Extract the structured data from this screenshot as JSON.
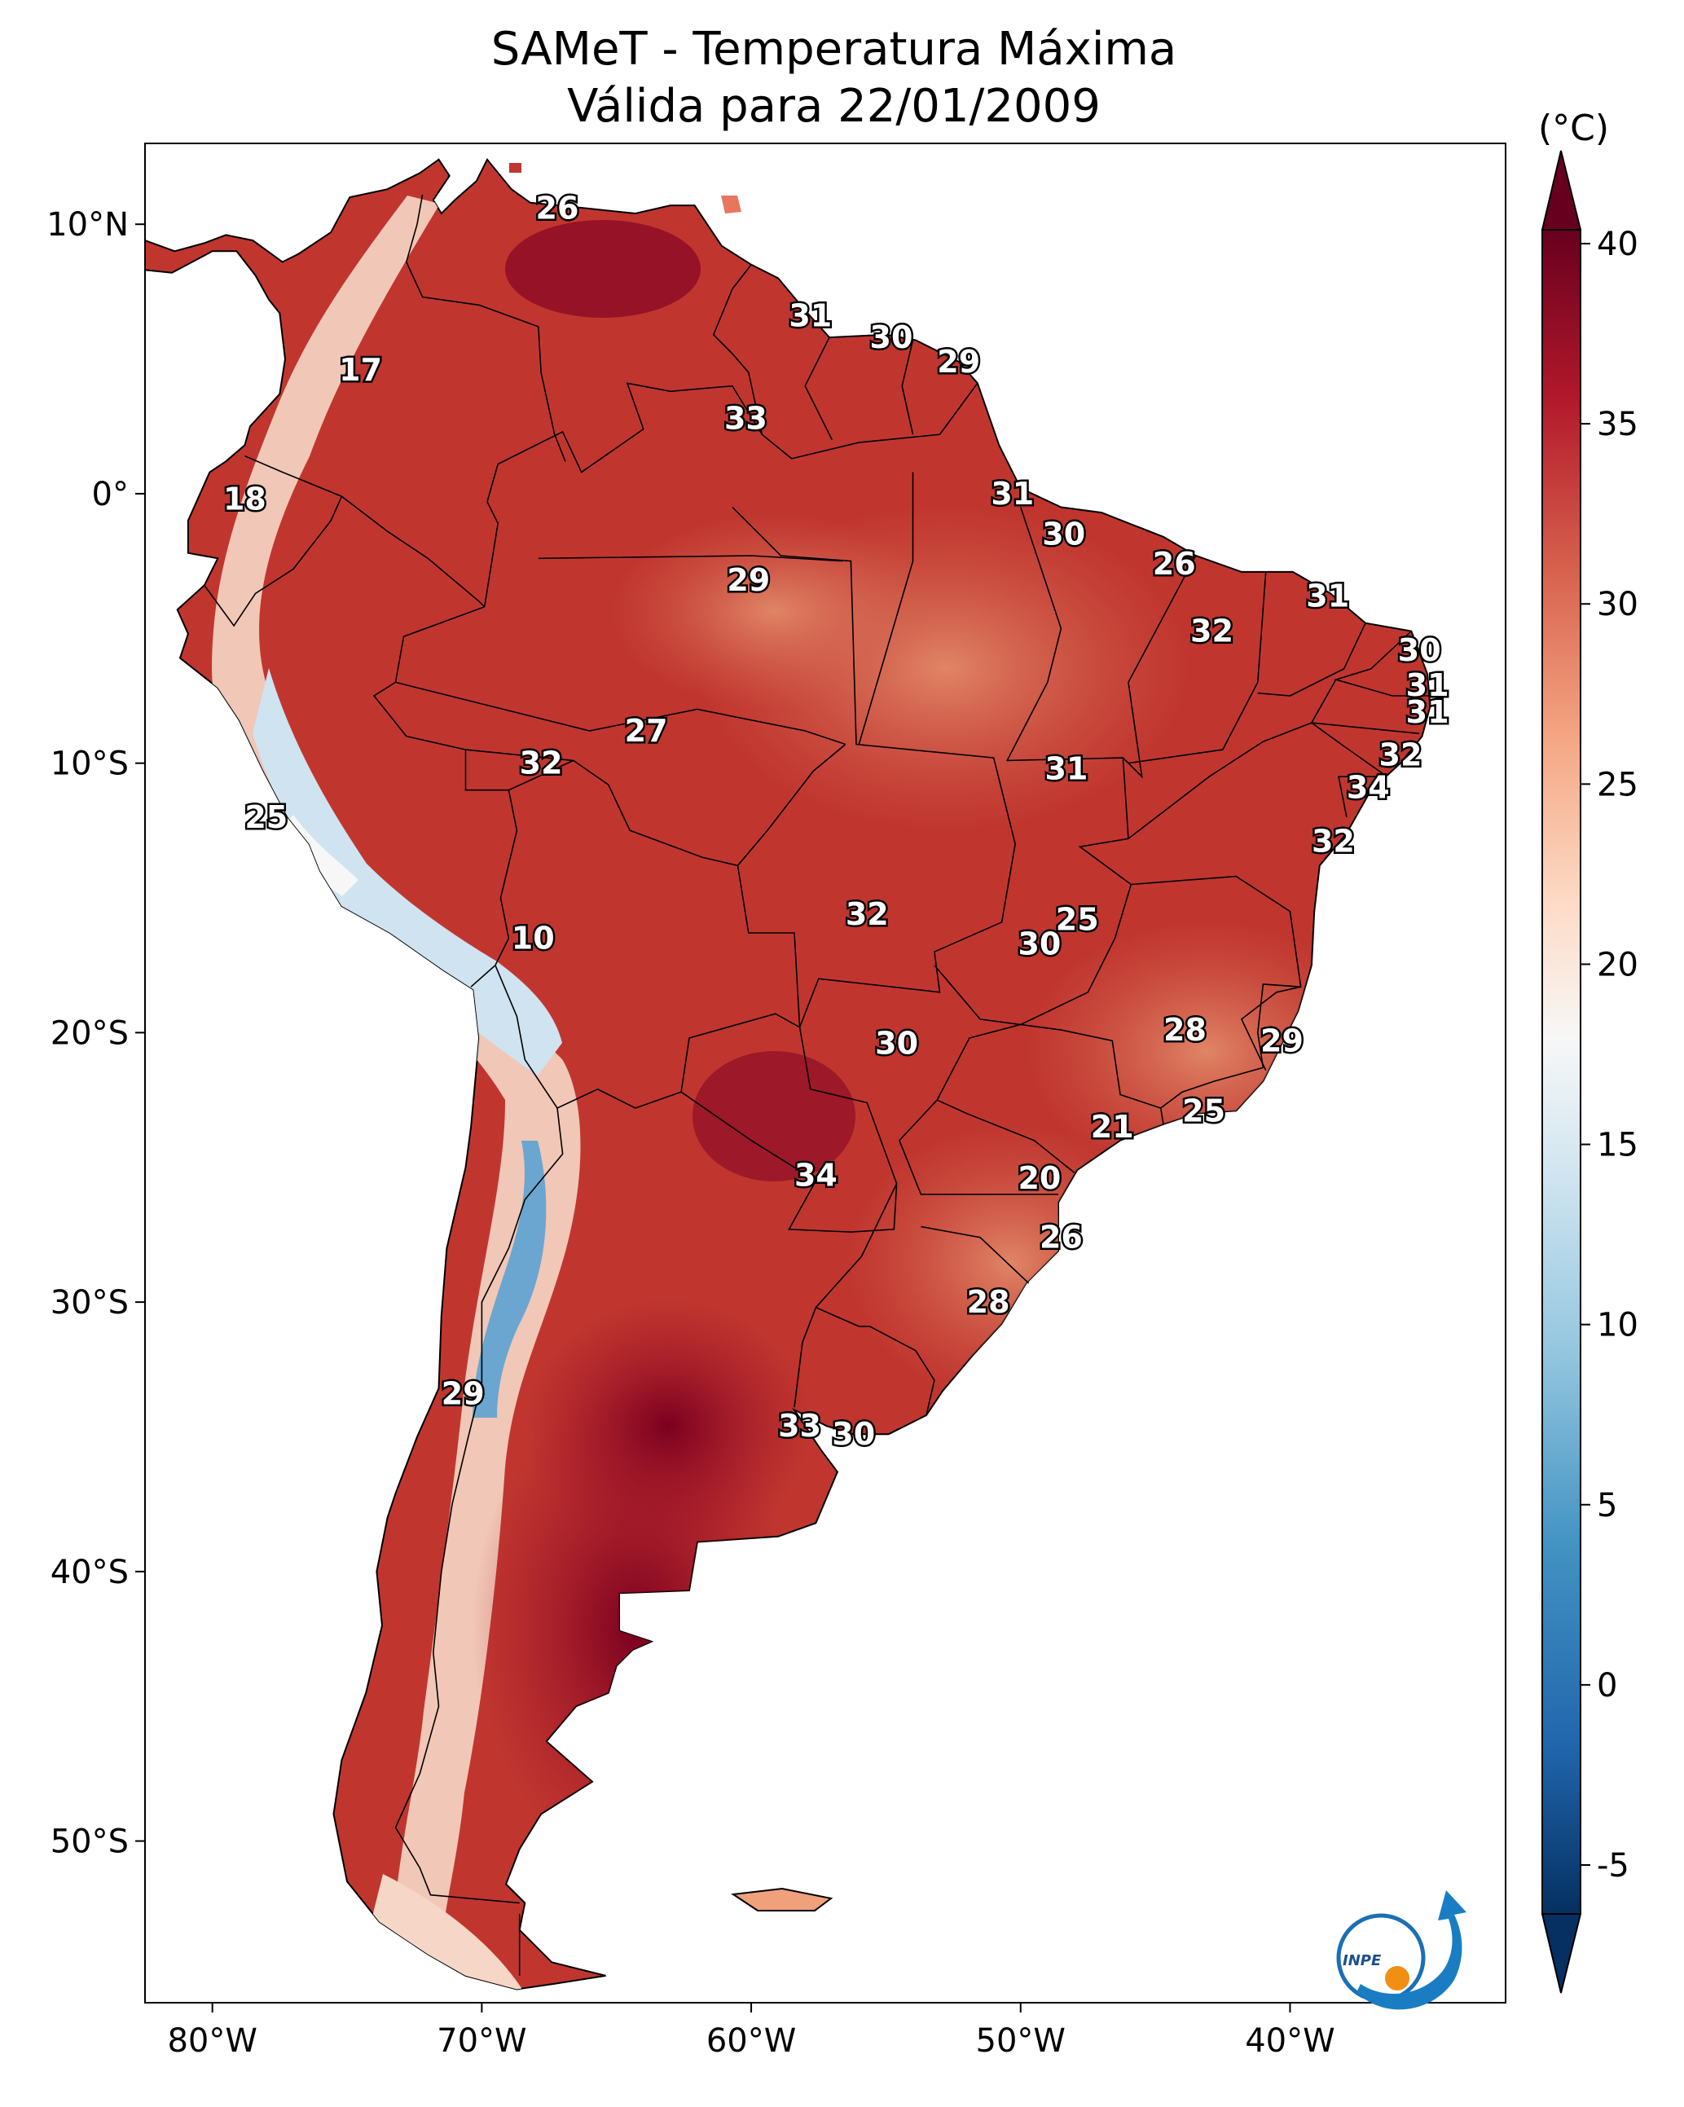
{
  "title_line1": "SAMeT - Temperatura Máxima",
  "title_line2": "Válida para 22/01/2009",
  "colorbar": {
    "unit": "(°C)",
    "min": -5,
    "max": 40,
    "ticks": [
      "40",
      "35",
      "30",
      "25",
      "20",
      "15",
      "10",
      "5",
      "0",
      "-5"
    ],
    "colors": [
      "#053061",
      "#2166ac",
      "#4393c3",
      "#92c5de",
      "#d1e5f0",
      "#f7f7f7",
      "#fddbc7",
      "#f4a582",
      "#d6604d",
      "#b2182b",
      "#67001f"
    ]
  },
  "axes": {
    "lat_ticks": [
      "10°N",
      "0°",
      "10°S",
      "20°S",
      "30°S",
      "40°S",
      "50°S"
    ],
    "lon_ticks": [
      "80°W",
      "70°W",
      "60°W",
      "50°W",
      "40°W"
    ]
  },
  "map_extent": {
    "lon": [
      -82.5,
      -32
    ],
    "lat": [
      -56,
      13
    ]
  },
  "station_labels": [
    {
      "v": "26",
      "lon": -67.2,
      "lat": 10.6
    },
    {
      "v": "17",
      "lon": -74.5,
      "lat": 4.6
    },
    {
      "v": "18",
      "lon": -78.8,
      "lat": -0.2
    },
    {
      "v": "31",
      "lon": -57.8,
      "lat": 6.6
    },
    {
      "v": "30",
      "lon": -54.8,
      "lat": 5.8
    },
    {
      "v": "29",
      "lon": -52.3,
      "lat": 4.9
    },
    {
      "v": "33",
      "lon": -60.2,
      "lat": 2.8
    },
    {
      "v": "31",
      "lon": -50.3,
      "lat": 0.0
    },
    {
      "v": "30",
      "lon": -48.4,
      "lat": -1.5
    },
    {
      "v": "29",
      "lon": -60.1,
      "lat": -3.2
    },
    {
      "v": "26",
      "lon": -44.3,
      "lat": -2.6
    },
    {
      "v": "31",
      "lon": -38.6,
      "lat": -3.8
    },
    {
      "v": "32",
      "lon": -42.9,
      "lat": -5.1
    },
    {
      "v": "30",
      "lon": -35.2,
      "lat": -5.8
    },
    {
      "v": "31",
      "lon": -34.9,
      "lat": -7.1
    },
    {
      "v": "31",
      "lon": -34.9,
      "lat": -8.1
    },
    {
      "v": "27",
      "lon": -63.9,
      "lat": -8.8
    },
    {
      "v": "32",
      "lon": -67.8,
      "lat": -10.0
    },
    {
      "v": "31",
      "lon": -48.3,
      "lat": -10.2
    },
    {
      "v": "32",
      "lon": -35.9,
      "lat": -9.7
    },
    {
      "v": "34",
      "lon": -37.1,
      "lat": -10.9
    },
    {
      "v": "25",
      "lon": -78.0,
      "lat": -12.0
    },
    {
      "v": "32",
      "lon": -38.4,
      "lat": -12.9
    },
    {
      "v": "32",
      "lon": -55.7,
      "lat": -15.6
    },
    {
      "v": "25",
      "lon": -47.9,
      "lat": -15.8
    },
    {
      "v": "30",
      "lon": -49.3,
      "lat": -16.7
    },
    {
      "v": "10",
      "lon": -68.1,
      "lat": -16.5
    },
    {
      "v": "28",
      "lon": -43.9,
      "lat": -19.9
    },
    {
      "v": "29",
      "lon": -40.3,
      "lat": -20.3
    },
    {
      "v": "30",
      "lon": -54.6,
      "lat": -20.4
    },
    {
      "v": "25",
      "lon": -43.2,
      "lat": -22.9
    },
    {
      "v": "21",
      "lon": -46.6,
      "lat": -23.5
    },
    {
      "v": "34",
      "lon": -57.6,
      "lat": -25.3
    },
    {
      "v": "20",
      "lon": -49.3,
      "lat": -25.4
    },
    {
      "v": "26",
      "lon": -48.5,
      "lat": -27.6
    },
    {
      "v": "28",
      "lon": -51.2,
      "lat": -30.0
    },
    {
      "v": "29",
      "lon": -70.7,
      "lat": -33.4
    },
    {
      "v": "33",
      "lon": -58.2,
      "lat": -34.6
    },
    {
      "v": "30",
      "lon": -56.2,
      "lat": -34.9
    }
  ],
  "logo": {
    "text": "INPE"
  }
}
